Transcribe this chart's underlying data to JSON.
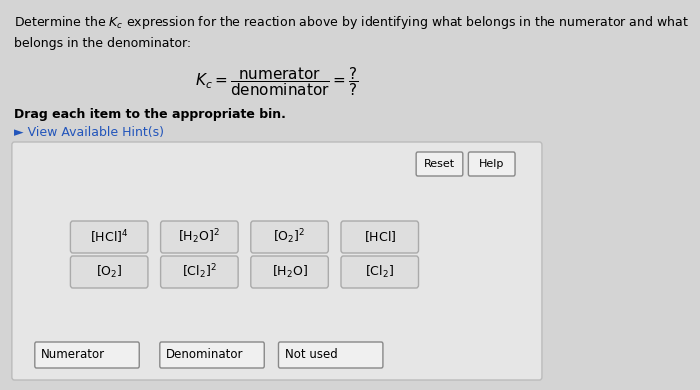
{
  "title_text": "Determine the $K_c$ expression for the reaction above by identifying what belongs in the numerator and what\nbelongs in the denominator:",
  "formula_text": "$K_c = \\dfrac{\\mathrm{numerator}}{\\mathrm{denominator}} = \\dfrac{?}{?}$",
  "drag_instruction": "Drag each item to the appropriate bin.",
  "hint_text": "► View Available Hint(s)",
  "bg_color": "#d4d4d4",
  "panel_color": "#e6e6e6",
  "button_color": "#dedede",
  "button_edge": "#aaaaaa",
  "reset_help_color": "#f0f0f0",
  "row1_items": [
    "$[\\mathrm{HCl}]^4$",
    "$[\\mathrm{H_2O}]^2$",
    "$[\\mathrm{O_2}]^2$",
    "$[\\mathrm{HCl}]$"
  ],
  "row2_items": [
    "$[\\mathrm{O_2}]$",
    "$[\\mathrm{Cl_2}]^2$",
    "$[\\mathrm{H_2O}]$",
    "$[\\mathrm{Cl_2}]$"
  ],
  "bottom_bins": [
    "Numerator",
    "Denominator",
    "Not used"
  ],
  "font_size_title": 9,
  "font_size_formula": 11,
  "font_size_items": 9
}
